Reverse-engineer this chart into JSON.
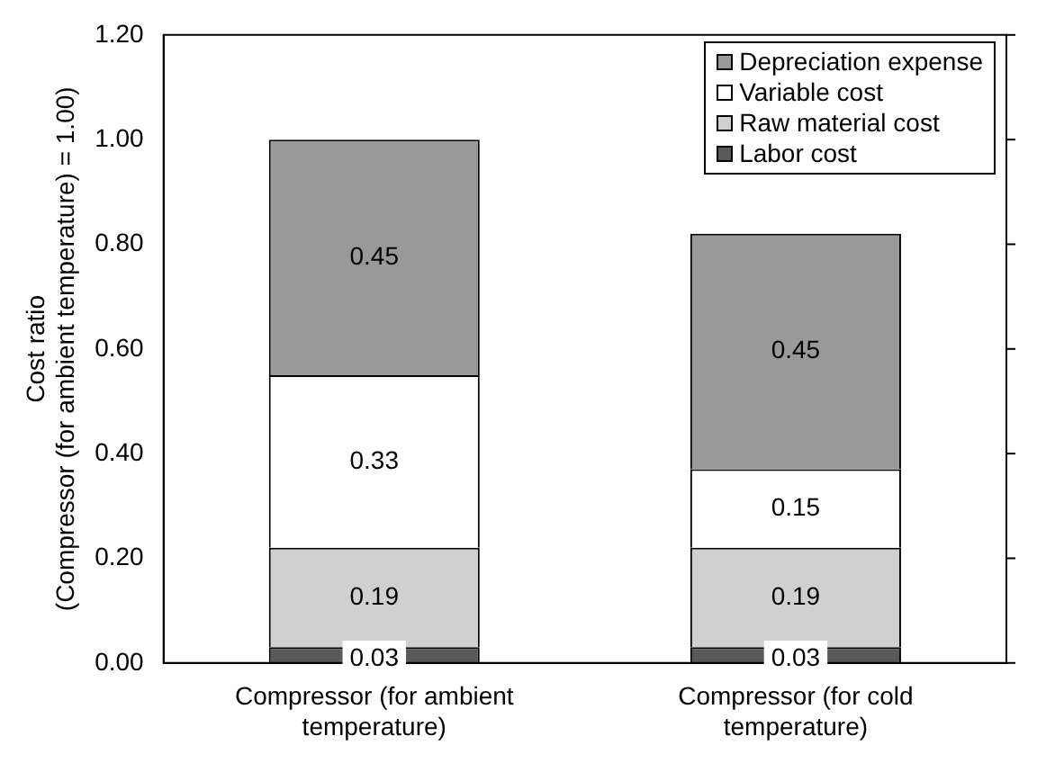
{
  "chart_data": {
    "type": "bar",
    "stacked": true,
    "ylabel": "Cost ratio\n(Compressor (for ambient temperature) = 1.00)",
    "categories": [
      "Compressor (for ambient temperature)",
      "Compressor (for cold temperature)"
    ],
    "series": [
      {
        "name": "Labor cost",
        "color": "#595959",
        "values": [
          0.03,
          0.03
        ]
      },
      {
        "name": "Raw material cost",
        "color": "#d0d0d0",
        "values": [
          0.19,
          0.19
        ]
      },
      {
        "name": "Variable cost",
        "color": "#ffffff",
        "values": [
          0.33,
          0.15
        ]
      },
      {
        "name": "Depreciation expense",
        "color": "#999999",
        "values": [
          0.45,
          0.45
        ]
      }
    ],
    "ylim": [
      0,
      1.2
    ],
    "yticks": [
      {
        "value": 0,
        "label": "0.00"
      },
      {
        "value": 0.2,
        "label": "0.20"
      },
      {
        "value": 0.4,
        "label": "0.40"
      },
      {
        "value": 0.6,
        "label": "0.60"
      },
      {
        "value": 0.8,
        "label": "0.80"
      },
      {
        "value": 1,
        "label": "1.00"
      },
      {
        "value": 1.2,
        "label": "1.20"
      }
    ],
    "data_labels": true,
    "legend": "top right",
    "grid": false
  }
}
